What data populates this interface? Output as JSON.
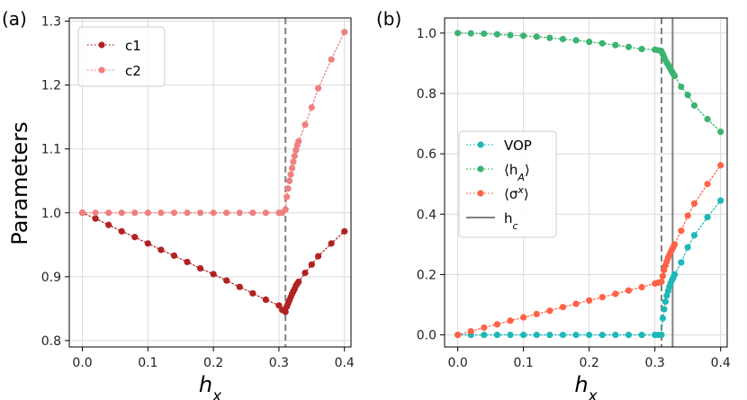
{
  "chart_data": [
    {
      "panel_label": "(a)",
      "type": "line",
      "ylabel": "Parameters",
      "xlabel_base": "h",
      "xlabel_sub": "x",
      "xlim": [
        -0.02,
        0.41
      ],
      "ylim": [
        0.79,
        1.305
      ],
      "xticks": [
        0.0,
        0.1,
        0.2,
        0.3,
        0.4
      ],
      "xtick_labels": [
        "0.0",
        "0.1",
        "0.2",
        "0.3",
        "0.4"
      ],
      "yticks": [
        0.8,
        0.9,
        1.0,
        1.1,
        1.2,
        1.3
      ],
      "ytick_labels": [
        "0.8",
        "0.9",
        "1.0",
        "1.1",
        "1.2",
        "1.3"
      ],
      "grid": true,
      "legend_position": "top-left",
      "vlines": [
        {
          "x": 0.31,
          "style": "dashed",
          "color": "#808080"
        }
      ],
      "series": [
        {
          "name": "c1",
          "color": "#b22222",
          "x": [
            0.0,
            0.02,
            0.04,
            0.06,
            0.08,
            0.1,
            0.12,
            0.14,
            0.16,
            0.18,
            0.2,
            0.22,
            0.24,
            0.26,
            0.28,
            0.3,
            0.305,
            0.31,
            0.312,
            0.314,
            0.316,
            0.318,
            0.32,
            0.322,
            0.324,
            0.326,
            0.328,
            0.33,
            0.34,
            0.35,
            0.36,
            0.38,
            0.4
          ],
          "y": [
            1.0,
            0.991,
            0.981,
            0.971,
            0.962,
            0.952,
            0.942,
            0.933,
            0.923,
            0.913,
            0.904,
            0.894,
            0.884,
            0.874,
            0.864,
            0.855,
            0.848,
            0.845,
            0.853,
            0.858,
            0.863,
            0.868,
            0.873,
            0.877,
            0.881,
            0.886,
            0.889,
            0.892,
            0.906,
            0.919,
            0.932,
            0.952,
            0.971
          ]
        },
        {
          "name": "c2",
          "color": "#f08080",
          "x": [
            0.0,
            0.02,
            0.04,
            0.06,
            0.08,
            0.1,
            0.12,
            0.14,
            0.16,
            0.18,
            0.2,
            0.22,
            0.24,
            0.26,
            0.28,
            0.3,
            0.305,
            0.31,
            0.312,
            0.314,
            0.316,
            0.318,
            0.32,
            0.322,
            0.324,
            0.326,
            0.328,
            0.33,
            0.34,
            0.35,
            0.36,
            0.38,
            0.4
          ],
          "y": [
            1.0,
            1.0,
            1.0,
            1.0,
            1.0,
            1.0,
            1.0,
            1.0,
            1.0,
            1.0,
            1.0,
            1.0,
            1.0,
            1.0,
            1.0,
            1.0,
            1.0,
            1.005,
            1.025,
            1.038,
            1.05,
            1.06,
            1.07,
            1.08,
            1.089,
            1.098,
            1.106,
            1.112,
            1.138,
            1.165,
            1.195,
            1.24,
            1.283
          ]
        }
      ]
    },
    {
      "panel_label": "(b)",
      "type": "line",
      "ylabel": "",
      "xlabel_base": "h",
      "xlabel_sub": "x",
      "xlim": [
        -0.02,
        0.41
      ],
      "ylim": [
        -0.04,
        1.05
      ],
      "xticks": [
        0.0,
        0.1,
        0.2,
        0.3,
        0.4
      ],
      "xtick_labels": [
        "0.0",
        "0.1",
        "0.2",
        "0.3",
        "0.4"
      ],
      "yticks": [
        0.0,
        0.2,
        0.4,
        0.6,
        0.8,
        1.0
      ],
      "ytick_labels": [
        "0.0",
        "0.2",
        "0.4",
        "0.6",
        "0.8",
        "1.0"
      ],
      "grid": true,
      "legend_position": "center-left",
      "vlines": [
        {
          "x": 0.31,
          "style": "dashed",
          "color": "#808080"
        },
        {
          "x": 0.327,
          "style": "solid",
          "color": "#808080"
        }
      ],
      "series": [
        {
          "name": "VOP",
          "label_html": "VOP",
          "color": "#1fb7b7",
          "x": [
            0.0,
            0.02,
            0.04,
            0.06,
            0.08,
            0.1,
            0.12,
            0.14,
            0.16,
            0.18,
            0.2,
            0.22,
            0.24,
            0.26,
            0.28,
            0.3,
            0.305,
            0.31,
            0.312,
            0.314,
            0.316,
            0.318,
            0.32,
            0.322,
            0.324,
            0.326,
            0.328,
            0.33,
            0.34,
            0.35,
            0.36,
            0.38,
            0.4
          ],
          "y": [
            0.0,
            0.0,
            0.0,
            0.0,
            0.0,
            0.0,
            0.0,
            0.0,
            0.0,
            0.0,
            0.0,
            0.0,
            0.0,
            0.0,
            0.0,
            0.0,
            0.0,
            0.0,
            0.055,
            0.085,
            0.11,
            0.13,
            0.145,
            0.16,
            0.172,
            0.182,
            0.19,
            0.2,
            0.24,
            0.29,
            0.33,
            0.39,
            0.445
          ]
        },
        {
          "name": "<h_A>",
          "label_html": "⟨h<tspan baseline-shift=\"sub\" font-size=\"11\">A</tspan>⟩",
          "label_base": "⟨h",
          "label_sub": "A",
          "label_tail": "⟩",
          "color": "#3cb371",
          "x": [
            0.0,
            0.02,
            0.04,
            0.06,
            0.08,
            0.1,
            0.12,
            0.14,
            0.16,
            0.18,
            0.2,
            0.22,
            0.24,
            0.26,
            0.28,
            0.3,
            0.305,
            0.31,
            0.312,
            0.314,
            0.316,
            0.318,
            0.32,
            0.322,
            0.324,
            0.326,
            0.328,
            0.33,
            0.34,
            0.35,
            0.36,
            0.38,
            0.4
          ],
          "y": [
            1.0,
            0.999,
            0.998,
            0.996,
            0.993,
            0.991,
            0.988,
            0.984,
            0.98,
            0.976,
            0.971,
            0.966,
            0.96,
            0.954,
            0.947,
            0.945,
            0.943,
            0.94,
            0.93,
            0.92,
            0.91,
            0.902,
            0.895,
            0.888,
            0.88,
            0.872,
            0.865,
            0.858,
            0.822,
            0.795,
            0.76,
            0.715,
            0.673
          ]
        },
        {
          "name": "<sigma^x>",
          "label_base": "⟨σ",
          "label_sup": "x",
          "label_tail": "⟩",
          "color": "#ff6347",
          "x": [
            0.0,
            0.02,
            0.04,
            0.06,
            0.08,
            0.1,
            0.12,
            0.14,
            0.16,
            0.18,
            0.2,
            0.22,
            0.24,
            0.26,
            0.28,
            0.3,
            0.305,
            0.31,
            0.312,
            0.314,
            0.316,
            0.318,
            0.32,
            0.322,
            0.324,
            0.326,
            0.328,
            0.33,
            0.34,
            0.35,
            0.36,
            0.38,
            0.4
          ],
          "y": [
            0.0,
            0.012,
            0.024,
            0.035,
            0.047,
            0.058,
            0.069,
            0.08,
            0.092,
            0.103,
            0.114,
            0.125,
            0.136,
            0.147,
            0.158,
            0.17,
            0.173,
            0.176,
            0.195,
            0.215,
            0.23,
            0.243,
            0.255,
            0.265,
            0.274,
            0.283,
            0.291,
            0.3,
            0.345,
            0.395,
            0.435,
            0.5,
            0.562
          ]
        }
      ],
      "legend_extra": {
        "name": "h_c",
        "label_base": "h",
        "label_sub": "c",
        "color": "#808080"
      }
    }
  ]
}
